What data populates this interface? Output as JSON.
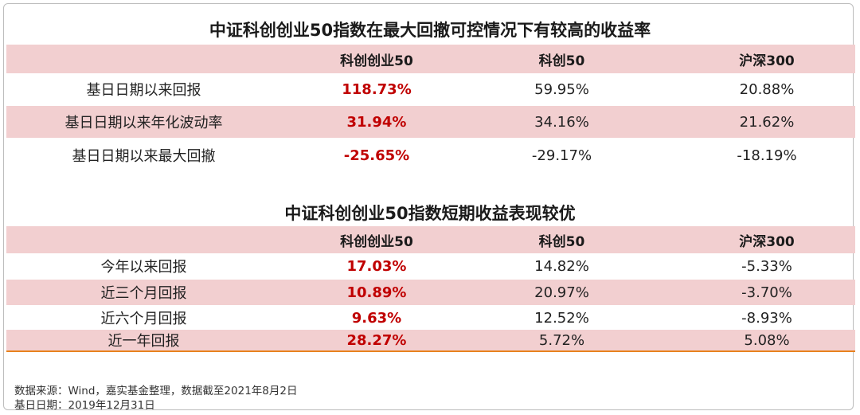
{
  "table1": {
    "title": "中证科创创业50指数在最大回撤可控情况下有较高的收益率",
    "headers": [
      "",
      "科创创业50",
      "科创50",
      "沪深300"
    ],
    "rows": [
      [
        "基日日期以来回报",
        "118.73%",
        "59.95%",
        "20.88%"
      ],
      [
        "基日日期以来年化波动率",
        "31.94%",
        "34.16%",
        "21.62%"
      ],
      [
        "基日日期以来最大回撤",
        "-25.65%",
        "-29.17%",
        "-18.19%"
      ]
    ]
  },
  "table2": {
    "title": "中证科创创业50指数短期收益表现较优",
    "headers": [
      "",
      "科创创业50",
      "科创50",
      "沪深300"
    ],
    "rows": [
      [
        "今年以来回报",
        "17.03%",
        "14.82%",
        "-5.33%"
      ],
      [
        "近三个月回报",
        "10.89%",
        "20.97%",
        "-3.70%"
      ],
      [
        "近六个月回报",
        "9.63%",
        "12.52%",
        "-8.93%"
      ],
      [
        "近一年回报",
        "28.27%",
        "5.72%",
        "5.08%"
      ]
    ]
  },
  "notes": {
    "source": "数据来源：Wind，嘉实基金整理，数据截至2021年8月2日",
    "base_date": "基日日期：2019年12月31日"
  },
  "colors": {
    "band": "#f2cfd0",
    "accent": "#c00000",
    "bottom_line": "#e8821e"
  }
}
